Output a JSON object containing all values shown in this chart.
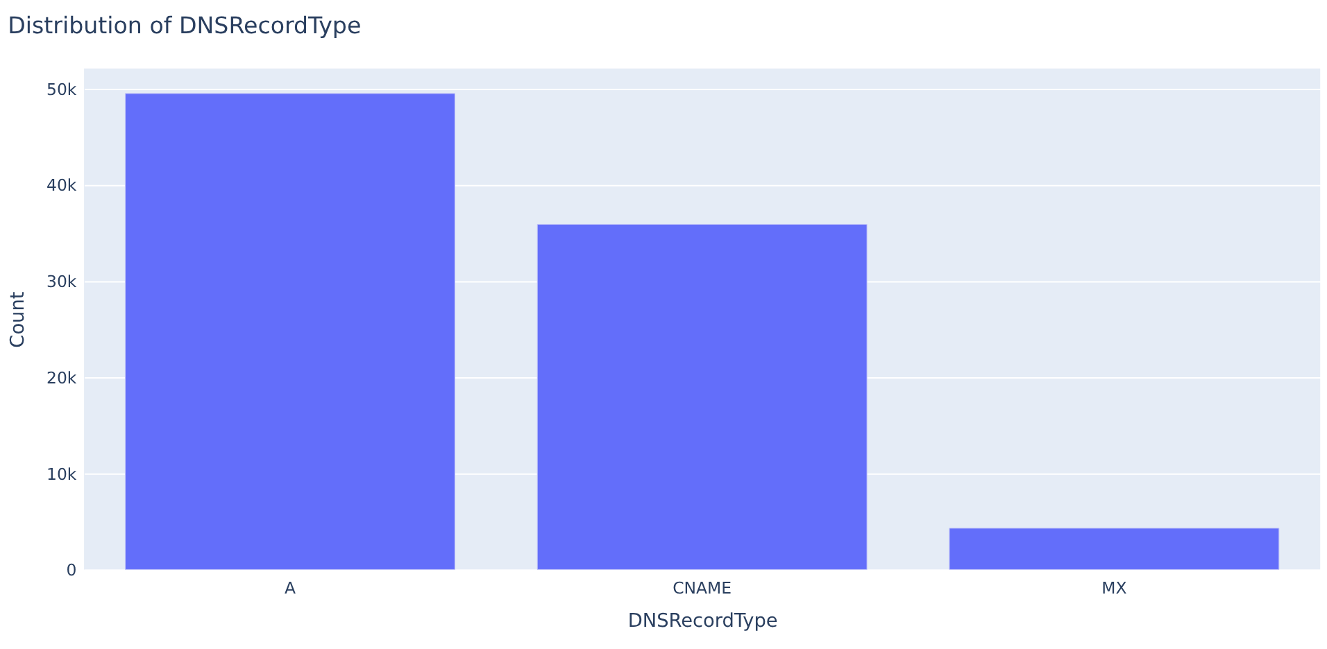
{
  "chart_data": {
    "type": "bar",
    "title": "Distribution of DNSRecordType",
    "xlabel": "DNSRecordType",
    "ylabel": "Count",
    "categories": [
      "A",
      "CNAME",
      "MX"
    ],
    "values": [
      49500,
      35900,
      4300
    ],
    "color": "#636efa",
    "ylim": [
      0,
      52100
    ],
    "yticks": [
      {
        "value": 0,
        "label": "0"
      },
      {
        "value": 10000,
        "label": "10k"
      },
      {
        "value": 20000,
        "label": "20k"
      },
      {
        "value": 30000,
        "label": "30k"
      },
      {
        "value": 40000,
        "label": "40k"
      },
      {
        "value": 50000,
        "label": "50k"
      }
    ],
    "grid": "y"
  }
}
